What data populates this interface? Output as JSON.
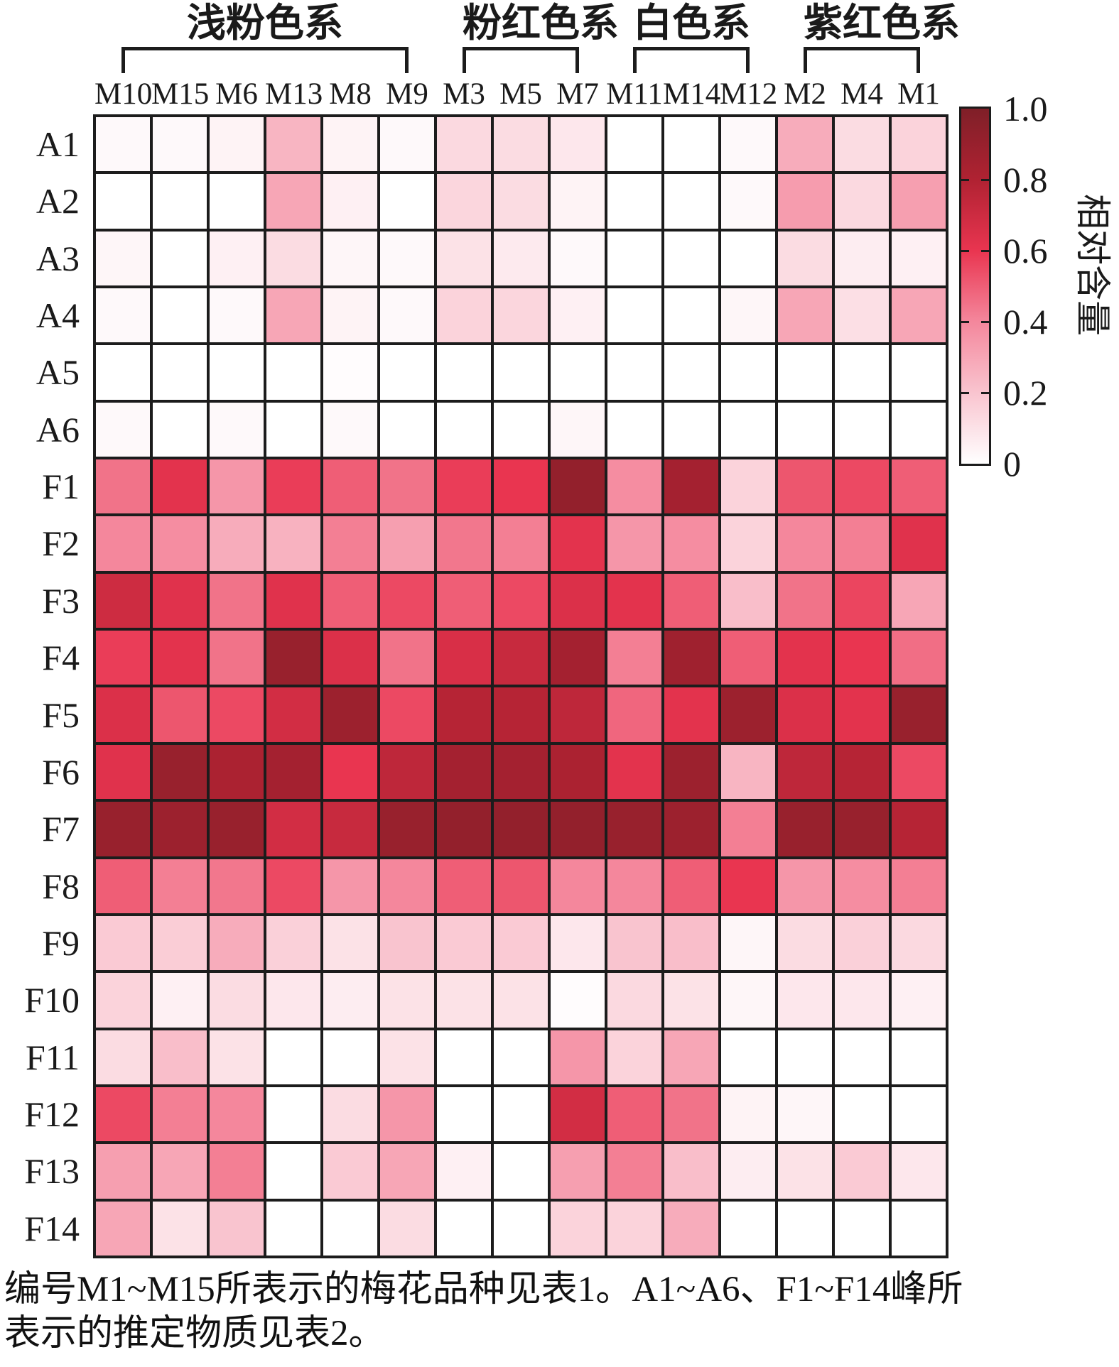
{
  "figure": {
    "caption_line1": "编号M1~M15所表示的梅花品种见表1。A1~A6、F1~F14峰所",
    "caption_line2": "表示的推定物质见表2。"
  },
  "chart_data": {
    "type": "heatmap",
    "title": "",
    "xlabel": "",
    "ylabel": "",
    "columns": [
      "M10",
      "M15",
      "M6",
      "M13",
      "M8",
      "M9",
      "M3",
      "M5",
      "M7",
      "M11",
      "M14",
      "M12",
      "M2",
      "M4",
      "M1"
    ],
    "rows": [
      "A1",
      "A2",
      "A3",
      "A4",
      "A5",
      "A6",
      "F1",
      "F2",
      "F3",
      "F4",
      "F5",
      "F6",
      "F7",
      "F8",
      "F9",
      "F10",
      "F11",
      "F12",
      "F13",
      "F14"
    ],
    "values": [
      [
        0.02,
        0.02,
        0.04,
        0.25,
        0.04,
        0.02,
        0.13,
        0.12,
        0.08,
        0.0,
        0.0,
        0.02,
        0.28,
        0.12,
        0.15
      ],
      [
        0.0,
        0.0,
        0.0,
        0.3,
        0.05,
        0.0,
        0.14,
        0.12,
        0.04,
        0.0,
        0.0,
        0.02,
        0.33,
        0.13,
        0.32
      ],
      [
        0.03,
        0.0,
        0.05,
        0.12,
        0.03,
        0.02,
        0.1,
        0.07,
        0.02,
        0.0,
        0.0,
        0.0,
        0.12,
        0.06,
        0.05
      ],
      [
        0.02,
        0.0,
        0.02,
        0.3,
        0.04,
        0.02,
        0.15,
        0.14,
        0.05,
        0.0,
        0.0,
        0.03,
        0.3,
        0.11,
        0.3
      ],
      [
        0.0,
        0.0,
        0.0,
        0.0,
        0.01,
        0.0,
        0.0,
        0.0,
        0.0,
        0.0,
        0.0,
        0.0,
        0.0,
        0.0,
        0.0
      ],
      [
        0.02,
        0.0,
        0.02,
        0.0,
        0.02,
        0.0,
        0.0,
        0.0,
        0.03,
        0.0,
        0.0,
        0.0,
        0.0,
        0.0,
        0.0
      ],
      [
        0.45,
        0.62,
        0.35,
        0.58,
        0.5,
        0.45,
        0.58,
        0.6,
        0.92,
        0.38,
        0.85,
        0.15,
        0.52,
        0.55,
        0.5
      ],
      [
        0.4,
        0.38,
        0.28,
        0.26,
        0.42,
        0.32,
        0.44,
        0.42,
        0.62,
        0.35,
        0.38,
        0.15,
        0.4,
        0.42,
        0.63
      ],
      [
        0.7,
        0.63,
        0.45,
        0.63,
        0.5,
        0.55,
        0.5,
        0.55,
        0.65,
        0.62,
        0.5,
        0.22,
        0.45,
        0.56,
        0.3
      ],
      [
        0.58,
        0.62,
        0.45,
        0.9,
        0.65,
        0.45,
        0.66,
        0.72,
        0.85,
        0.42,
        0.87,
        0.5,
        0.62,
        0.6,
        0.46
      ],
      [
        0.65,
        0.52,
        0.55,
        0.68,
        0.88,
        0.55,
        0.78,
        0.78,
        0.75,
        0.48,
        0.62,
        0.88,
        0.65,
        0.62,
        0.9
      ],
      [
        0.63,
        0.9,
        0.82,
        0.85,
        0.6,
        0.75,
        0.85,
        0.85,
        0.82,
        0.62,
        0.88,
        0.25,
        0.75,
        0.78,
        0.55
      ],
      [
        0.9,
        0.88,
        0.9,
        0.68,
        0.72,
        0.9,
        0.92,
        0.92,
        0.92,
        0.9,
        0.88,
        0.42,
        0.9,
        0.9,
        0.78
      ],
      [
        0.5,
        0.42,
        0.44,
        0.55,
        0.35,
        0.4,
        0.5,
        0.52,
        0.4,
        0.4,
        0.5,
        0.6,
        0.35,
        0.38,
        0.42
      ],
      [
        0.18,
        0.17,
        0.28,
        0.16,
        0.1,
        0.2,
        0.18,
        0.18,
        0.08,
        0.2,
        0.22,
        0.03,
        0.12,
        0.16,
        0.13
      ],
      [
        0.15,
        0.05,
        0.12,
        0.08,
        0.06,
        0.1,
        0.1,
        0.1,
        0.01,
        0.13,
        0.1,
        0.03,
        0.08,
        0.08,
        0.05
      ],
      [
        0.12,
        0.22,
        0.1,
        0.0,
        0.0,
        0.1,
        0.0,
        0.0,
        0.35,
        0.15,
        0.3,
        0.0,
        0.0,
        0.0,
        0.0
      ],
      [
        0.55,
        0.42,
        0.4,
        0.0,
        0.12,
        0.35,
        0.0,
        0.0,
        0.68,
        0.5,
        0.45,
        0.04,
        0.03,
        0.0,
        0.0
      ],
      [
        0.32,
        0.3,
        0.42,
        0.0,
        0.18,
        0.3,
        0.05,
        0.0,
        0.32,
        0.42,
        0.22,
        0.06,
        0.1,
        0.18,
        0.08
      ],
      [
        0.3,
        0.1,
        0.2,
        0.0,
        0.0,
        0.12,
        0.0,
        0.0,
        0.15,
        0.15,
        0.28,
        0.0,
        0.0,
        0.0,
        0.0
      ]
    ],
    "column_groups": [
      {
        "label": "浅粉色系",
        "from": 0,
        "to": 5
      },
      {
        "label": "粉红色系",
        "from": 6,
        "to": 8
      },
      {
        "label": "白色系",
        "from": 9,
        "to": 11
      },
      {
        "label": "紫红色系",
        "from": 12,
        "to": 14
      }
    ],
    "colorbar": {
      "label": "相对含量",
      "min": 0,
      "max": 1,
      "ticks": [
        {
          "text": "1.0",
          "value": 1.0
        },
        {
          "text": "0.8",
          "value": 0.8
        },
        {
          "text": "0.6",
          "value": 0.6
        },
        {
          "text": "0.4",
          "value": 0.4
        },
        {
          "text": "0.2",
          "value": 0.2
        },
        {
          "text": "0",
          "value": 0.0
        }
      ]
    },
    "colorscale": [
      [
        0.0,
        "#ffffff"
      ],
      [
        0.2,
        "#f9c4cf"
      ],
      [
        0.4,
        "#f4879c"
      ],
      [
        0.6,
        "#e93550"
      ],
      [
        0.8,
        "#b02232"
      ],
      [
        1.0,
        "#7f1f28"
      ]
    ],
    "grid_line_color": "#1c1c1c",
    "legend_position": "right",
    "grid": "on"
  }
}
